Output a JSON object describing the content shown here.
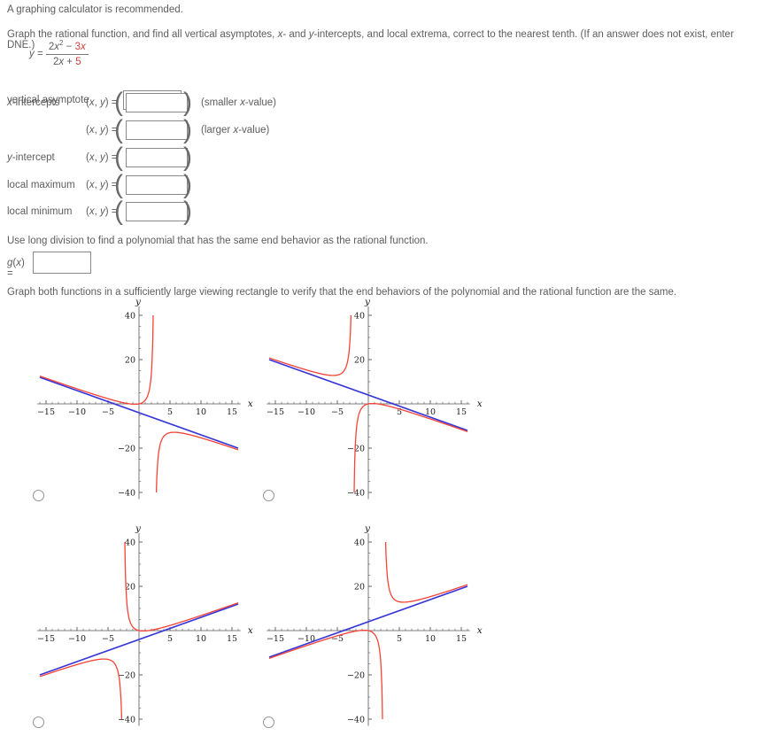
{
  "note": "A graphing calculator is recommended.",
  "instructions": {
    "i1": "Graph the rational function, and find all vertical asymptotes, ",
    "ix": "x",
    "i2": "- and ",
    "iy": "y",
    "i3": "-intercepts, and local extrema, correct to the nearest tenth. (If an answer does not exist, enter DNE.)"
  },
  "formula": {
    "lhs_var": "y",
    "eq": " = ",
    "n1": "2",
    "n2": "x",
    "n_sup": "2",
    "n3": " − ",
    "n4": "3",
    "n5": "x",
    "d1": "2",
    "d2": "x",
    "d3": " + ",
    "d4": "5"
  },
  "answers": {
    "va_label": "vertical asymptote",
    "xint": {
      "i1": "x",
      "i2": "-intercepts"
    },
    "yint": {
      "i1": "y",
      "i2": "-intercept"
    },
    "lmax": "local maximum",
    "lmin": "local minimum",
    "xy_prefix": {
      "p1": "(",
      "p2": "x",
      "p3": ", ",
      "p4": "y",
      "p5": ") = "
    },
    "big_open": "(",
    "big_close": ")",
    "hint_smaller": {
      "h1": "(smaller ",
      "h2": "x",
      "h3": "-value)"
    },
    "hint_larger": {
      "h1": "(larger ",
      "h2": "x",
      "h3": "-value)"
    },
    "inputs": {
      "vertical_asymptote": "",
      "x_smaller": "",
      "x_larger": "",
      "y_intercept": "",
      "local_max": "",
      "local_min": "",
      "g_of_x": ""
    }
  },
  "long_division": {
    "text": "Use long division to find a polynomial that has the same end behavior as the rational function.",
    "g1": "g",
    "g2": "(",
    "g3": "x",
    "g4": ") ="
  },
  "graph_section": {
    "text": "Graph both functions in a sufficiently large viewing rectangle to verify that the end behaviors of the polynomial and the rational function are the same."
  },
  "chart_data": {
    "type": "line",
    "axes": {
      "xlabel": "x",
      "ylabel": "y",
      "xlim": [
        -16.4,
        16.4
      ],
      "ylim": [
        -43,
        44
      ],
      "x_major_ticks": [
        -15,
        -10,
        -5,
        5,
        10,
        15
      ],
      "x_minor_step": 1,
      "y_major_ticks": [
        -40,
        -20,
        20,
        40
      ],
      "y_minor_step": 5,
      "curve_clip_y": 40,
      "curve_x_range": [
        -16,
        16
      ],
      "grid": false
    },
    "colors": {
      "polynomial": "#3636d8",
      "rational": "#f64438"
    },
    "graphs": [
      {
        "id": "option-a",
        "position": "top-left",
        "radio_selected": false,
        "polynomial": {
          "slope": -1,
          "intercept": -4,
          "equation": "y = -x - 4"
        },
        "rational": {
          "line_slope": -1,
          "line_intercept": -4,
          "k": -20,
          "denom_c": -5,
          "vertical_asymptote": 2.5,
          "equation": "y = -x - 4 - 20/(2x - 5)",
          "local_min": [
            -0.7,
            -0.2
          ],
          "local_max": [
            5.7,
            -12.8
          ]
        }
      },
      {
        "id": "option-b",
        "position": "top-right",
        "radio_selected": false,
        "polynomial": {
          "slope": -1,
          "intercept": 4,
          "equation": "y = -x + 4"
        },
        "rational": {
          "line_slope": -1,
          "line_intercept": 4,
          "k": -20,
          "denom_c": 5,
          "vertical_asymptote": -2.5,
          "equation": "y = -x + 4 - 20/(2x + 5)",
          "local_min": [
            -5.7,
            12.8
          ],
          "local_max": [
            0.7,
            0.2
          ]
        }
      },
      {
        "id": "option-c",
        "position": "bottom-left",
        "radio_selected": false,
        "polynomial": {
          "slope": 1,
          "intercept": -4,
          "equation": "y = x - 4"
        },
        "rational": {
          "line_slope": 1,
          "line_intercept": -4,
          "k": 20,
          "denom_c": 5,
          "vertical_asymptote": -2.5,
          "equation": "y = (2x^2 - 3x)/(2x + 5)",
          "local_min": [
            0.7,
            -0.2
          ],
          "local_max": [
            -5.7,
            -12.8
          ]
        }
      },
      {
        "id": "option-d",
        "position": "bottom-right",
        "radio_selected": false,
        "polynomial": {
          "slope": 1,
          "intercept": 4,
          "equation": "y = x + 4"
        },
        "rational": {
          "line_slope": 1,
          "line_intercept": 4,
          "k": 20,
          "denom_c": -5,
          "vertical_asymptote": 2.5,
          "equation": "y = x + 4 + 20/(2x - 5)",
          "local_min": [
            5.7,
            12.8
          ],
          "local_max": [
            -0.7,
            0.2
          ]
        }
      }
    ]
  }
}
